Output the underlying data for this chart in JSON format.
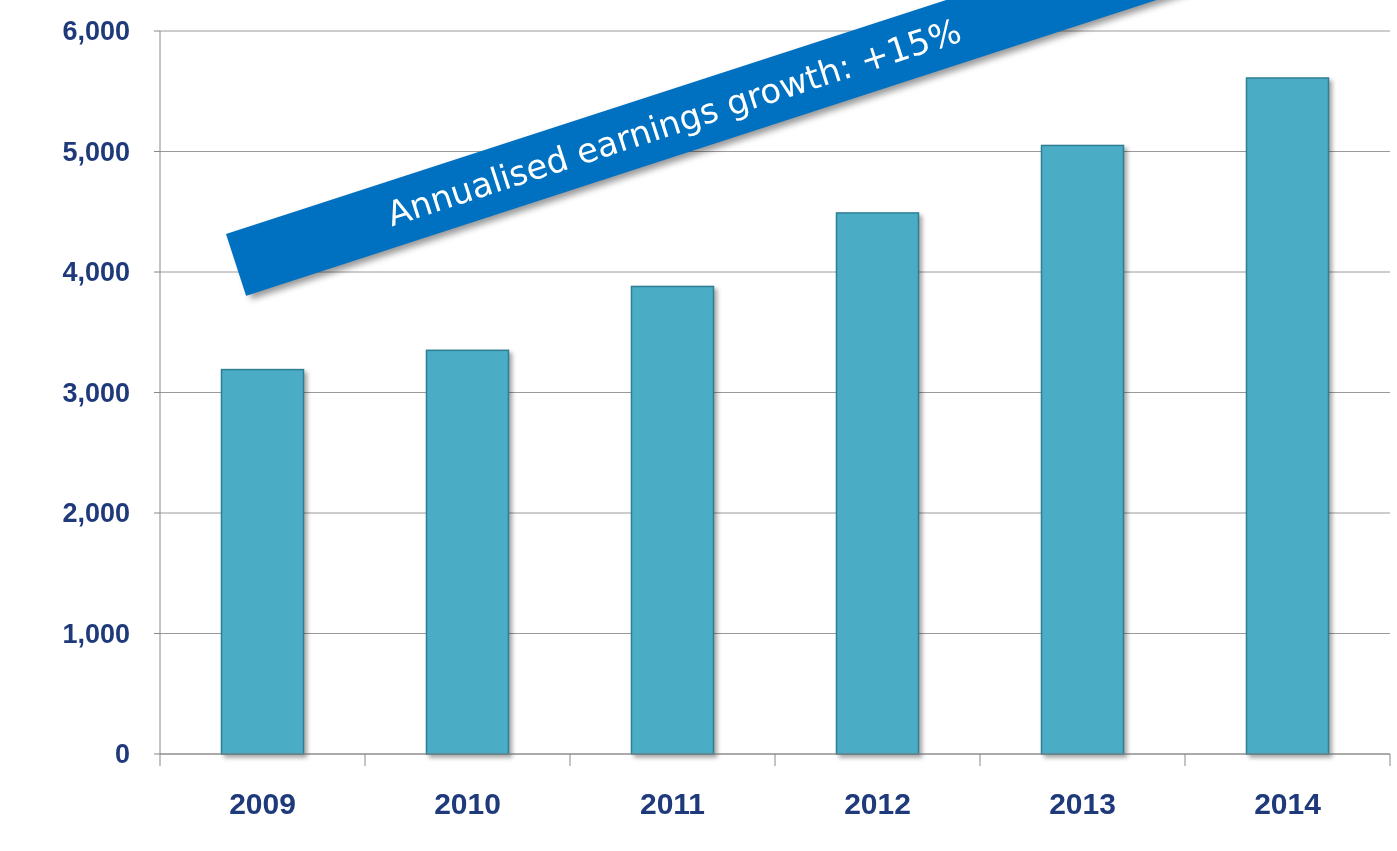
{
  "chart_data": {
    "type": "bar",
    "categories": [
      "2009",
      "2010",
      "2011",
      "2012",
      "2013",
      "2014"
    ],
    "values": [
      3190,
      3350,
      3880,
      4490,
      5050,
      5610
    ],
    "color": "#4bacc6",
    "ylim": [
      0,
      6000
    ],
    "yticks": [
      {
        "value": 0,
        "label": "0"
      },
      {
        "value": 1000,
        "label": "1,000"
      },
      {
        "value": 2000,
        "label": "2,000"
      },
      {
        "value": 3000,
        "label": "3,000"
      },
      {
        "value": 4000,
        "label": "4,000"
      },
      {
        "value": 5000,
        "label": "5,000"
      },
      {
        "value": 6000,
        "label": "6,000"
      }
    ],
    "grid": "y",
    "annotations": [
      "Annualised earnings growth: +15%"
    ]
  }
}
